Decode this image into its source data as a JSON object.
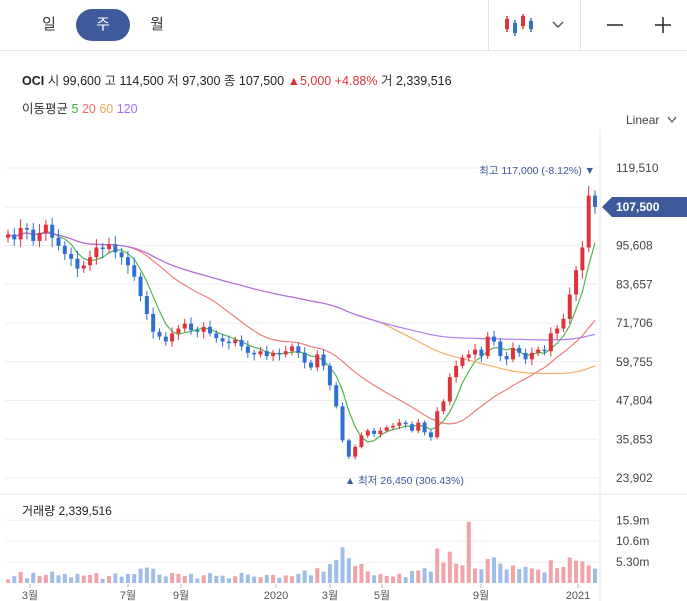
{
  "tabs": [
    {
      "label": "일",
      "active": false
    },
    {
      "label": "주",
      "active": true
    },
    {
      "label": "월",
      "active": false
    }
  ],
  "toolbar": {
    "chart_type_icon": "candlestick-icon",
    "zoom_out_icon": "minus-icon",
    "zoom_in_icon": "plus-icon"
  },
  "header": {
    "ticker": "OCI",
    "open_label": "시",
    "open": "99,600",
    "high_label": "고",
    "high": "114,500",
    "low_label": "저",
    "low": "97,300",
    "close_label": "종",
    "close": "107,500",
    "change": "▲5,000",
    "change_pct": "+4.88%",
    "volume_label": "거",
    "volume": "2,339,516"
  },
  "moving_average": {
    "label": "이동평균",
    "periods": [
      "5",
      "20",
      "60",
      "120"
    ]
  },
  "scale_mode": "Linear",
  "colors": {
    "up": "#e0323d",
    "down": "#2f6fd1",
    "ma5": "#3fae3f",
    "ma20": "#ef6e6e",
    "ma60": "#f1a658",
    "ma120": "#a66cf0",
    "badge": "#3f5a9a"
  },
  "chart_data": {
    "type": "candlestick",
    "y_ticks": [
      "119,510",
      "107,500",
      "95,608",
      "83,657",
      "71,706",
      "59,755",
      "47,804",
      "35,853",
      "23,902"
    ],
    "ylim": [
      23902,
      119510
    ],
    "x_ticks": [
      "3월",
      "7월",
      "9월",
      "2020",
      "3월",
      "5월",
      "9월",
      "2021"
    ],
    "current_price_badge": "107,500",
    "max_annotation": "최고 117,000 (-8.12%) ▼",
    "min_annotation": "▲ 최저 26,450 (306.43%)",
    "close_approx": [
      99000,
      97500,
      101000,
      100500,
      97000,
      99500,
      102000,
      98000,
      95500,
      93000,
      91500,
      88500,
      89500,
      92000,
      95000,
      94500,
      96000,
      93500,
      92000,
      89500,
      86000,
      80000,
      74500,
      69000,
      67500,
      66000,
      68500,
      70000,
      71500,
      69500,
      69000,
      70500,
      68500,
      67000,
      66000,
      65500,
      66500,
      64500,
      62500,
      62000,
      63000,
      61500,
      62500,
      62000,
      63000,
      64500,
      62500,
      59500,
      58000,
      62000,
      58500,
      52500,
      46000,
      35500,
      30500,
      33500,
      37000,
      38500,
      37500,
      38500,
      39500,
      40000,
      41000,
      40500,
      38500,
      41000,
      38000,
      36500,
      44500,
      47500,
      55000,
      58500,
      61000,
      62000,
      63500,
      61500,
      67500,
      66000,
      61500,
      60500,
      64000,
      62500,
      60500,
      62500,
      63500,
      63000,
      68500,
      70000,
      73000,
      80500,
      88000,
      95000,
      111000,
      107500
    ],
    "volume_summary": {
      "label": "거래량",
      "value": "2,339,516",
      "ticks": [
        "15.9m",
        "10.6m",
        "5.30m"
      ]
    }
  }
}
